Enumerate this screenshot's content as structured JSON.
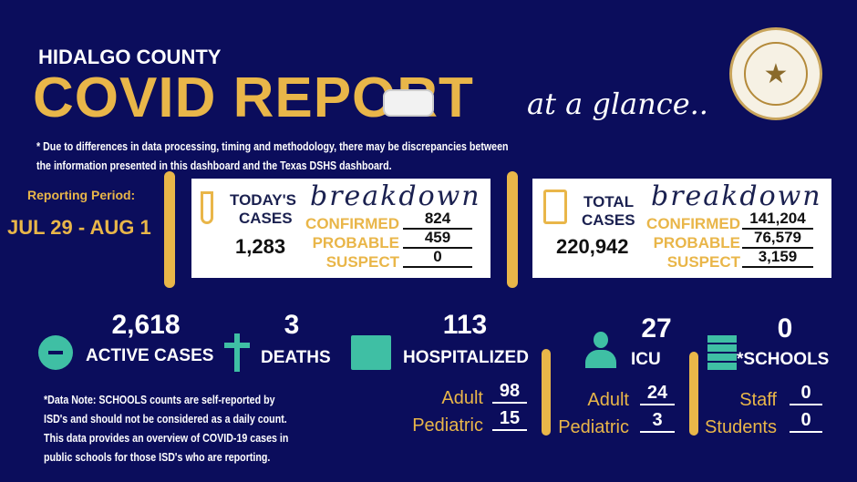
{
  "header": {
    "county": "HIDALGO COUNTY",
    "title": "COVID REPORT",
    "tagline": "at a glance..",
    "seal_text": "THE COUNTY OF HIDALGO TEXAS"
  },
  "disclaimer": [
    "* Due to differences in data processing, timing and methodology, there may be discrepancies between",
    "the information presented in this dashboard and the Texas DSHS dashboard."
  ],
  "reporting": {
    "label": "Reporting Period:",
    "period": "JUL 29 - AUG 1"
  },
  "today": {
    "title1": "TODAY'S",
    "title2": "CASES",
    "script": "breakdown",
    "total": "1,283",
    "confirmed_label": "CONFIRMED",
    "confirmed": "824",
    "probable_label": "PROBABLE",
    "probable": "459",
    "suspect_label": "SUSPECT",
    "suspect": "0"
  },
  "total": {
    "title1": "TOTAL",
    "title2": "CASES",
    "script": "breakdown",
    "total": "220,942",
    "confirmed_label": "CONFIRMED",
    "confirmed": "141,204",
    "probable_label": "PROBABLE",
    "probable": "76,579",
    "suspect_label": "SUSPECT",
    "suspect": "3,159"
  },
  "stats": {
    "active": {
      "value": "2,618",
      "label": "ACTIVE CASES"
    },
    "deaths": {
      "value": "3",
      "label": "DEATHS"
    },
    "hospitalized": {
      "value": "113",
      "label": "HOSPITALIZED",
      "adult_label": "Adult",
      "adult": "98",
      "pediatric_label": "Pediatric",
      "pediatric": "15"
    },
    "icu": {
      "value": "27",
      "label": "ICU",
      "adult_label": "Adult",
      "adult": "24",
      "pediatric_label": "Pediatric",
      "pediatric": "3"
    },
    "schools": {
      "value": "0",
      "label": "*SCHOOLS",
      "staff_label": "Staff",
      "staff": "0",
      "students_label": "Students",
      "students": "0"
    }
  },
  "note": [
    "*Data Note: SCHOOLS counts are self-reported by",
    "ISD's and should not be considered as a daily count.",
    "This data provides an overview of COVID-19 cases in",
    "public schools for those ISD's who are reporting."
  ],
  "colors": {
    "background": "#0b0d5c",
    "gold": "#e9b649",
    "teal": "#3fbfa4"
  }
}
